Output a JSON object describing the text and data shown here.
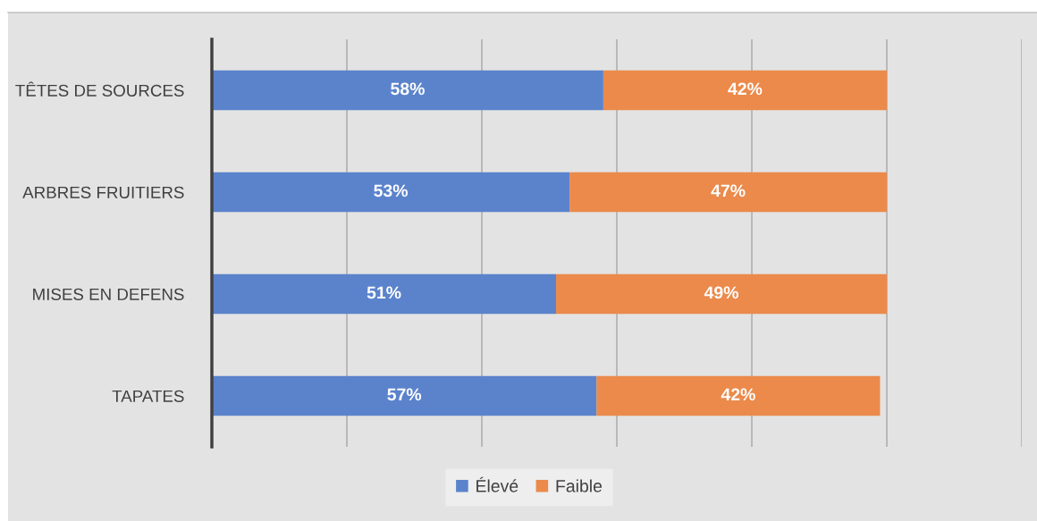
{
  "chart_data": {
    "type": "bar",
    "orientation": "horizontal",
    "stacked": true,
    "categories": [
      "TÊTES DE SOURCES",
      "ARBRES FRUITIERS",
      "MISES EN DEFENS",
      "TAPATES"
    ],
    "series": [
      {
        "name": "Élevé",
        "color": "#5b83cc",
        "values": [
          58,
          53,
          51,
          57
        ],
        "value_labels": [
          "58%",
          "53%",
          "51%",
          "57%"
        ]
      },
      {
        "name": "Faible",
        "color": "#eb8a4b",
        "values": [
          42,
          47,
          49,
          42
        ],
        "value_labels": [
          "42%",
          "47%",
          "49%",
          "42%"
        ]
      }
    ],
    "xlim": [
      0,
      120
    ],
    "xticks": [
      {
        "value": 0,
        "label": null
      },
      {
        "value": 20,
        "label": null
      },
      {
        "value": 40,
        "label": null
      },
      {
        "value": 60,
        "label": null
      },
      {
        "value": 80,
        "label": null
      },
      {
        "value": 100,
        "label": null
      },
      {
        "value": 120,
        "label": null
      }
    ],
    "tick_labels": "y",
    "grid": "x",
    "legend": "bottom"
  }
}
